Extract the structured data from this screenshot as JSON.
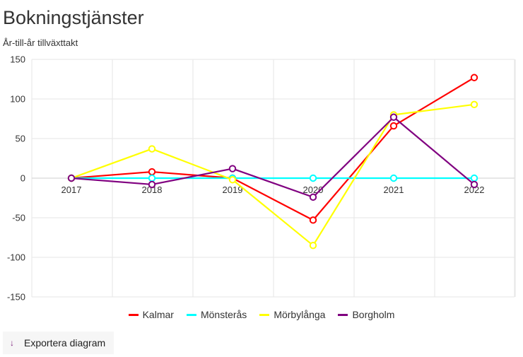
{
  "title": "Bokningstjänster",
  "subtitle": "År-till-år tillväxttakt",
  "export": {
    "label": "Exportera diagram",
    "icon": "arrow-down-icon"
  },
  "chart_data": {
    "type": "line",
    "x": [
      "2017",
      "2018",
      "2019",
      "2020",
      "2021",
      "2022"
    ],
    "ylim": [
      -150,
      150
    ],
    "yticks": [
      150,
      100,
      50,
      0,
      -50,
      -100,
      -150
    ],
    "grid": true,
    "legend_position": "bottom",
    "series": [
      {
        "name": "Kalmar",
        "color": "#ff0000",
        "values": [
          0,
          8,
          0,
          -53,
          66,
          127
        ]
      },
      {
        "name": "Mönsterås",
        "color": "#00ffff",
        "values": [
          0,
          0,
          0,
          0,
          0,
          0
        ]
      },
      {
        "name": "Mörbylånga",
        "color": "#ffff00",
        "values": [
          0,
          37,
          -2,
          -85,
          80,
          93
        ]
      },
      {
        "name": "Borgholm",
        "color": "#800080",
        "values": [
          0,
          -8,
          12,
          -24,
          77,
          -8
        ]
      }
    ]
  }
}
